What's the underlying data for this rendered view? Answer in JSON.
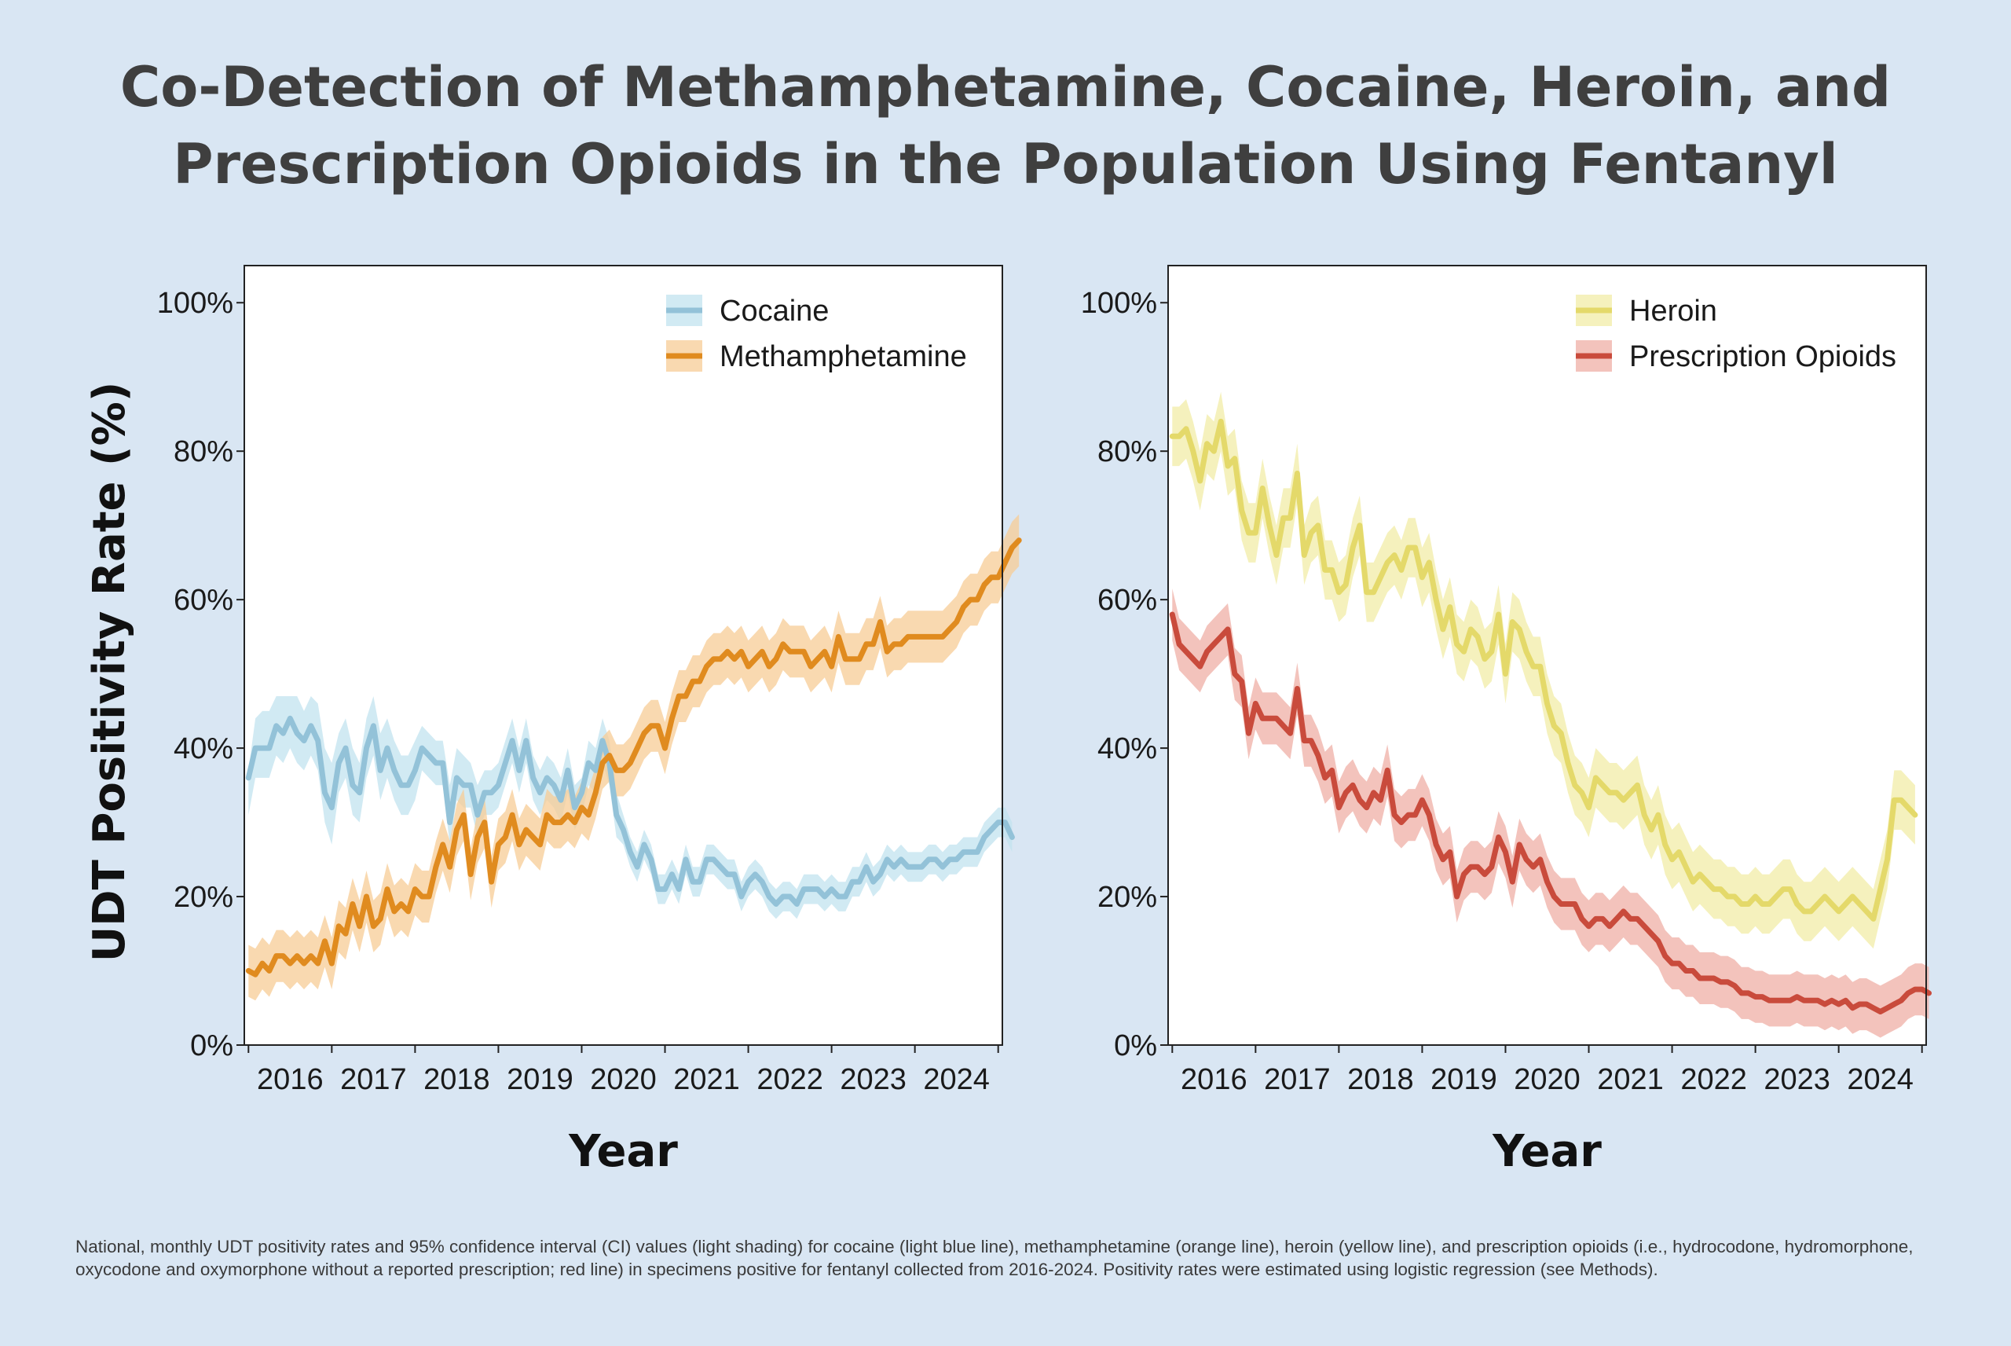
{
  "title_lines": [
    "Co-Detection of Methamphetamine, Cocaine, Heroin, and",
    "Prescription Opioids in the Population Using Fentanyl"
  ],
  "caption": "National, monthly UDT positivity rates and 95% confidence interval (CI) values (light shading) for cocaine (light blue line), methamphetamine (orange line), heroin (yellow line), and prescription opioids (i.e., hydrocodone, hydromorphone, oxycodone and oxymorphone without a reported prescription; red line) in specimens positive for fentanyl collected from 2016-2024. Positivity rates were estimated using logistic regression (see Methods).",
  "chart_data": [
    {
      "type": "line",
      "panel": "left",
      "xlabel": "Year",
      "ylabel": "UDT Positivity Rate (%)",
      "xlim": [
        2015.45,
        2024.55
      ],
      "ylim": [
        0,
        105
      ],
      "x_ticks": [
        2016,
        2017,
        2018,
        2019,
        2020,
        2021,
        2022,
        2023,
        2024
      ],
      "y_ticks": [
        0,
        20,
        40,
        60,
        80,
        100
      ],
      "y_tick_labels": [
        "0%",
        "20%",
        "40%",
        "60%",
        "80%",
        "100%"
      ],
      "grid": false,
      "legend_position": "top-right",
      "x_start": 2015.5,
      "x_step": 0.0833333,
      "series": [
        {
          "name": "Cocaine",
          "color": "#93c2d8",
          "band_color": "#c2e3ef",
          "ci_halfwidth": 4,
          "values": [
            36,
            40,
            40,
            40,
            43,
            42,
            44,
            42,
            41,
            43,
            41,
            34,
            32,
            38,
            40,
            35,
            34,
            40,
            43,
            37,
            40,
            37,
            35,
            35,
            37,
            40,
            39,
            38,
            38,
            30,
            36,
            35,
            35,
            31,
            34,
            34,
            35,
            38,
            41,
            37,
            41,
            36,
            34,
            36,
            35,
            33,
            37,
            32,
            34,
            38,
            37,
            41,
            38,
            31,
            29,
            26,
            24,
            27,
            25,
            21,
            21,
            23,
            21,
            25,
            22,
            22,
            25,
            25,
            24,
            23,
            23,
            20,
            22,
            23,
            22,
            20,
            19,
            20,
            20,
            19,
            21,
            21,
            21,
            20,
            21,
            20,
            20,
            22,
            22,
            24,
            22,
            23,
            25,
            24,
            25,
            24,
            24,
            24,
            25,
            25,
            24,
            25,
            25,
            26,
            26,
            26,
            28,
            29,
            30,
            30,
            28
          ],
          "band_upper": [
            37,
            44,
            45,
            45,
            47,
            47,
            47,
            47,
            45,
            47,
            46,
            40,
            38,
            42,
            44,
            40,
            38,
            44,
            47,
            42,
            44,
            41,
            39,
            39,
            41,
            43,
            42,
            41,
            41,
            35,
            40,
            39,
            38,
            35,
            37,
            37,
            38,
            41,
            44,
            40,
            44,
            39,
            37,
            39,
            38,
            36,
            40,
            35,
            36,
            41,
            40,
            44,
            41,
            34,
            31,
            28,
            26,
            29,
            27,
            23,
            23,
            25,
            23,
            27,
            24,
            24,
            27,
            27,
            26,
            25,
            25,
            22,
            24,
            25,
            24,
            22,
            21,
            22,
            22,
            21,
            23,
            23,
            23,
            22,
            23,
            22,
            22,
            24,
            24,
            26,
            24,
            25,
            27,
            26,
            27,
            26,
            26,
            26,
            27,
            27,
            26,
            27,
            27,
            28,
            28,
            28,
            30,
            31,
            32,
            32,
            30
          ],
          "band_lower": [
            31,
            36,
            36,
            36,
            39,
            38,
            40,
            38,
            37,
            39,
            37,
            30,
            27,
            34,
            36,
            31,
            30,
            36,
            39,
            33,
            36,
            33,
            31,
            31,
            33,
            37,
            36,
            35,
            35,
            27,
            33,
            32,
            32,
            28,
            31,
            31,
            32,
            35,
            38,
            34,
            38,
            33,
            31,
            33,
            32,
            30,
            34,
            29,
            31,
            35,
            34,
            38,
            35,
            28,
            27,
            24,
            22,
            25,
            23,
            19,
            19,
            21,
            19,
            23,
            20,
            20,
            23,
            23,
            22,
            21,
            21,
            18,
            20,
            21,
            20,
            18,
            17,
            18,
            18,
            17,
            19,
            19,
            19,
            18,
            19,
            18,
            18,
            20,
            20,
            22,
            20,
            21,
            23,
            22,
            23,
            22,
            22,
            22,
            23,
            23,
            22,
            23,
            23,
            24,
            24,
            24,
            26,
            27,
            28,
            28,
            26
          ]
        },
        {
          "name": "Methamphetamine",
          "color": "#e08b1f",
          "band_color": "#f7cc96",
          "ci_halfwidth": 3.5,
          "values": [
            10,
            9.5,
            11,
            10,
            12,
            12,
            11,
            12,
            11,
            12,
            11,
            14,
            11,
            16,
            15,
            19,
            16,
            20,
            16,
            17,
            21,
            18,
            19,
            18,
            21,
            20,
            20,
            24,
            27,
            24,
            29,
            31,
            23,
            28,
            30,
            22,
            27,
            28,
            31,
            27,
            29,
            28,
            27,
            31,
            30,
            30,
            31,
            30,
            32,
            31,
            34,
            38,
            39,
            37,
            37,
            38,
            40,
            42,
            43,
            43,
            40,
            44,
            47,
            47,
            49,
            49,
            51,
            52,
            52,
            53,
            52,
            53,
            51,
            52,
            53,
            51,
            52,
            54,
            53,
            53,
            53,
            51,
            52,
            53,
            51,
            55,
            52,
            52,
            52,
            54,
            54,
            57,
            53,
            54,
            54,
            55,
            55,
            55,
            55,
            55,
            55,
            56,
            57,
            59,
            60,
            60,
            62,
            63,
            63,
            65,
            67,
            68
          ]
        }
      ]
    },
    {
      "type": "line",
      "panel": "right",
      "xlabel": "Year",
      "ylabel": "",
      "xlim": [
        2015.45,
        2024.55
      ],
      "ylim": [
        0,
        105
      ],
      "x_ticks": [
        2016,
        2017,
        2018,
        2019,
        2020,
        2021,
        2022,
        2023,
        2024
      ],
      "y_ticks": [
        0,
        20,
        40,
        60,
        80,
        100
      ],
      "y_tick_labels": [
        "0%",
        "20%",
        "40%",
        "60%",
        "80%",
        "100%"
      ],
      "grid": false,
      "legend_position": "top-right",
      "x_start": 2015.5,
      "x_step": 0.0833333,
      "series": [
        {
          "name": "Heroin",
          "color": "#e4d96a",
          "band_color": "#f1eca7",
          "ci_halfwidth": 4,
          "values": [
            82,
            82,
            83,
            80,
            76,
            81,
            80,
            84,
            78,
            79,
            72,
            69,
            69,
            75,
            70,
            66,
            71,
            71,
            77,
            66,
            69,
            70,
            64,
            64,
            61,
            62,
            67,
            70,
            61,
            61,
            63,
            65,
            66,
            64,
            67,
            67,
            63,
            65,
            60,
            56,
            59,
            54,
            53,
            56,
            55,
            52,
            53,
            58,
            50,
            57,
            56,
            53,
            51,
            51,
            46,
            43,
            42,
            38,
            35,
            34,
            32,
            36,
            35,
            34,
            34,
            33,
            34,
            35,
            31,
            29,
            31,
            27,
            25,
            26,
            24,
            22,
            23,
            22,
            21,
            21,
            20,
            20,
            19,
            19,
            20,
            19,
            19,
            20,
            21,
            21,
            19,
            18,
            18,
            19,
            20,
            19,
            18,
            19,
            20,
            19,
            18,
            17,
            21,
            25,
            33,
            33,
            32,
            31
          ]
        },
        {
          "name": "Prescription Opioids",
          "color": "#c94b3c",
          "band_color": "#efafa6",
          "ci_halfwidth": 3.5,
          "values": [
            58,
            54,
            53,
            52,
            51,
            53,
            54,
            55,
            56,
            50,
            49,
            42,
            46,
            44,
            44,
            44,
            43,
            42,
            48,
            41,
            41,
            39,
            36,
            37,
            32,
            34,
            35,
            33,
            32,
            34,
            33,
            37,
            31,
            30,
            31,
            31,
            33,
            31,
            27,
            25,
            26,
            20,
            23,
            24,
            24,
            23,
            24,
            28,
            26,
            22,
            27,
            25,
            24,
            25,
            22,
            20,
            19,
            19,
            19,
            17,
            16,
            17,
            17,
            16,
            17,
            18,
            17,
            17,
            16,
            15,
            14,
            12,
            11,
            11,
            10,
            10,
            9,
            9,
            9,
            8.5,
            8.5,
            8,
            7,
            7,
            6.5,
            6.5,
            6,
            6,
            6,
            6,
            6.5,
            6,
            6,
            6,
            5.5,
            6,
            5.5,
            6,
            5,
            5.5,
            5.5,
            5,
            4.5,
            5,
            5.5,
            6,
            7,
            7.5,
            7.5,
            7
          ]
        }
      ]
    }
  ]
}
